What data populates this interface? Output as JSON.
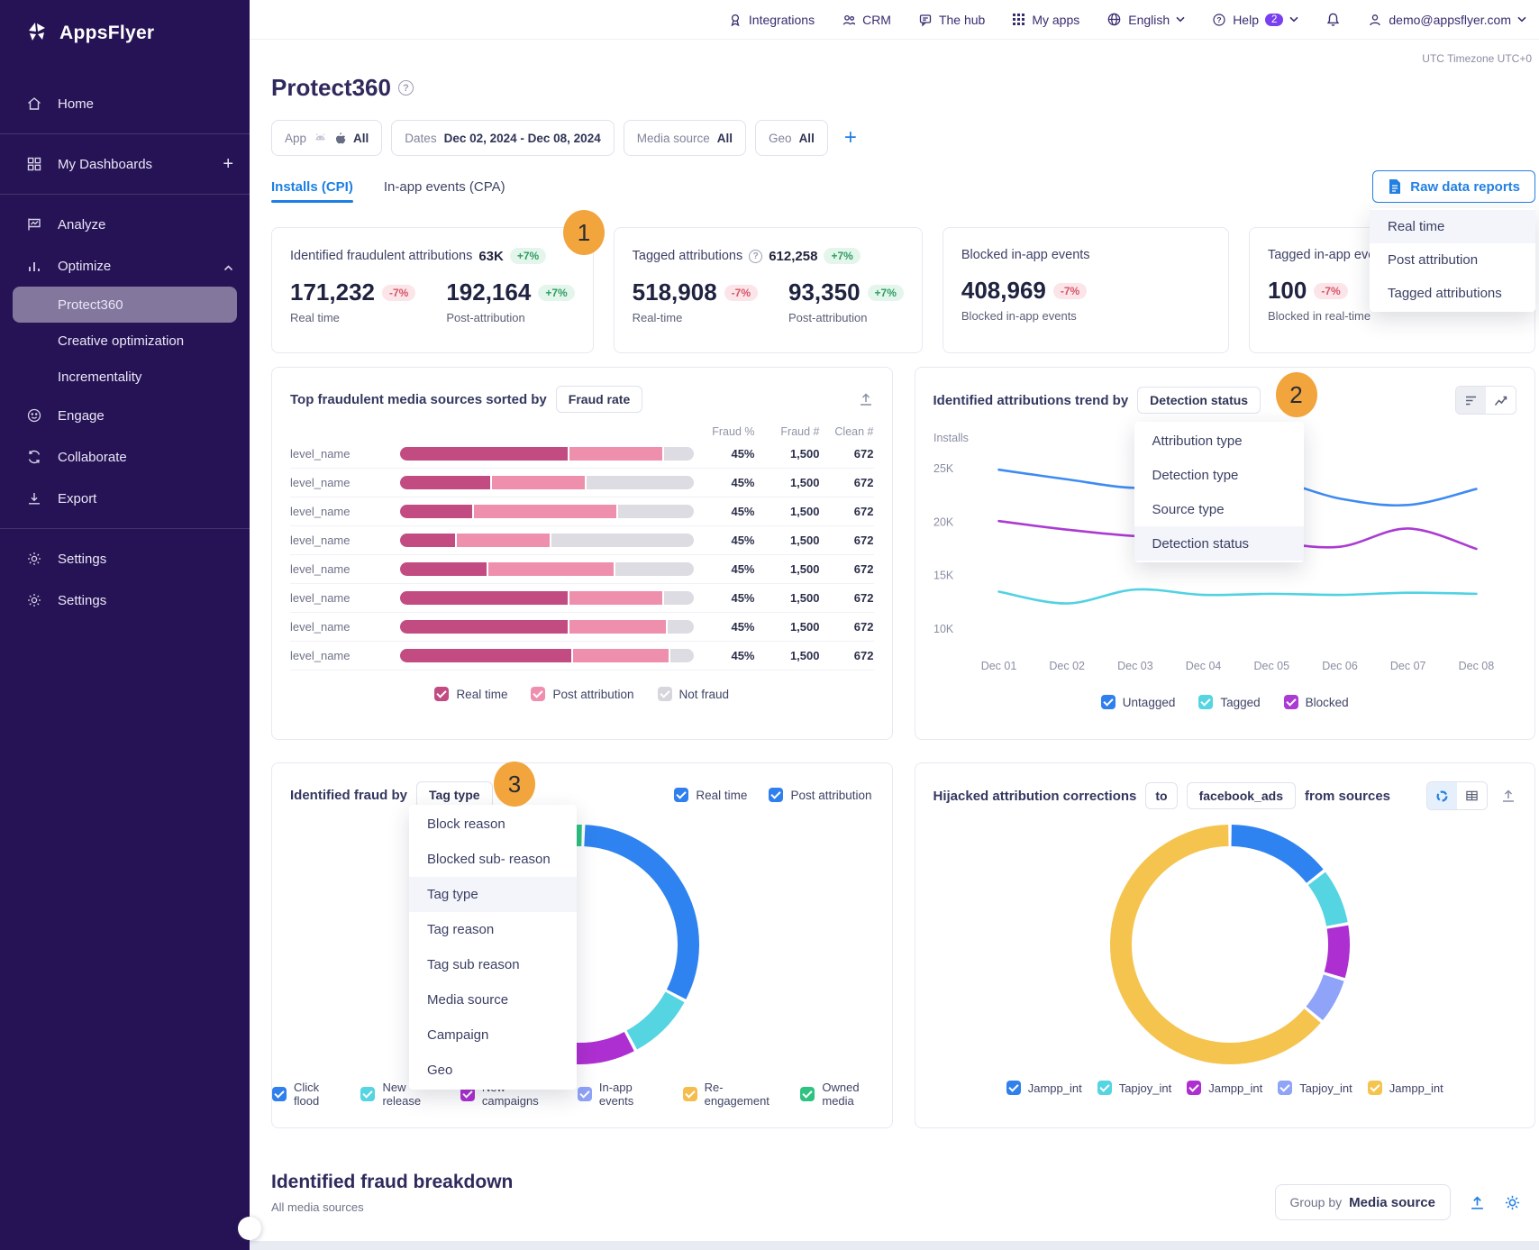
{
  "colors": {
    "sidebar_bg": "#261355",
    "accent_blue": "#2380e3",
    "checkbox_blue": "#2F80ED",
    "pink_dark": "#C24B82",
    "pink_light": "#EF8FAE",
    "neutral_gray": "#DCDCE2",
    "orange_badge": "#F2A43D",
    "badge_green": "#2f9e63",
    "badge_red": "#d85468"
  },
  "topnav": {
    "items": [
      {
        "label": "Integrations"
      },
      {
        "label": "CRM"
      },
      {
        "label": "The hub"
      },
      {
        "label": "My apps"
      },
      {
        "label": "English"
      },
      {
        "label": "Help"
      }
    ],
    "help_badge": "2",
    "email": "demo@appsflyer.com"
  },
  "sidebar": {
    "logo_text": "AppsFlyer",
    "items": [
      {
        "label": "Home",
        "icon": "home"
      },
      {
        "label": "My Dashboards",
        "icon": "dashboards",
        "trailing": "plus"
      },
      {
        "label": "Analyze",
        "icon": "analyze"
      },
      {
        "label": "Optimize",
        "icon": "optimize",
        "trailing": "chevron-up"
      },
      {
        "label": "Protect360",
        "sub": true,
        "selected": true
      },
      {
        "label": "Creative optimization",
        "sub": true
      },
      {
        "label": "Incrementality",
        "sub": true
      },
      {
        "label": "Engage",
        "icon": "engage"
      },
      {
        "label": "Collaborate",
        "icon": "collaborate"
      },
      {
        "label": "Export",
        "icon": "export"
      },
      {
        "label": "Settings",
        "icon": "settings"
      },
      {
        "label": "Settings",
        "icon": "settings"
      }
    ],
    "dividers_after": [
      0,
      1,
      9
    ]
  },
  "page": {
    "title": "Protect360",
    "timezone_note": "UTC Timezone UTC+0"
  },
  "filters": {
    "app_label": "App",
    "app_value": "All",
    "dates_label": "Dates",
    "dates_value": "Dec 02, 2024 - Dec 08, 2024",
    "media_label": "Media source",
    "media_value": "All",
    "geo_label": "Geo",
    "geo_value": "All",
    "add_label": "+"
  },
  "tabs": [
    {
      "label": "Installs (CPI)",
      "active": true
    },
    {
      "label": "In-app events (CPA)",
      "active": false
    }
  ],
  "raw_data": {
    "button_label": "Raw data reports",
    "menu": [
      "Real time",
      "Post attribution",
      "Tagged attributions"
    ],
    "active_index": 0
  },
  "step_badges": {
    "one": "1",
    "two": "2",
    "three": "3"
  },
  "kpis": {
    "cards": [
      {
        "title": "Identified fraudulent attributions",
        "title_value": "63K",
        "title_badge": "+7%",
        "title_badge_type": "up",
        "values": [
          {
            "value": "171,232",
            "badge": "-7%",
            "type": "down",
            "label": "Real time"
          },
          {
            "value": "192,164",
            "badge": "+7%",
            "type": "up",
            "label": "Post-attribution"
          }
        ]
      },
      {
        "title": "Tagged attributions",
        "help": true,
        "title_value": "612,258",
        "title_badge": "+7%",
        "title_badge_type": "up",
        "values": [
          {
            "value": "518,908",
            "badge": "-7%",
            "type": "down",
            "label": "Real-time"
          },
          {
            "value": "93,350",
            "badge": "+7%",
            "type": "up",
            "label": "Post-attribution"
          }
        ]
      },
      {
        "title": "Blocked in-app events",
        "values": [
          {
            "value": "408,969",
            "badge": "-7%",
            "type": "down",
            "label": "Blocked in-app events"
          }
        ]
      },
      {
        "title": "Tagged in-app ever",
        "values": [
          {
            "value": "100",
            "badge": "-7%",
            "type": "down",
            "label": "Blocked in real-time"
          }
        ]
      }
    ]
  },
  "fraud_sources": {
    "title": "Top fraudulent media sources sorted by",
    "sort_button": "Fraud rate",
    "columns": [
      "Fraud %",
      "Fraud #",
      "Clean #"
    ],
    "rows": [
      {
        "label": "level_name",
        "fraud_pct": "45%",
        "fraud_num": "1,500",
        "clean_num": "672",
        "segments": [
          58,
          32,
          10
        ]
      },
      {
        "label": "level_name",
        "fraud_pct": "45%",
        "fraud_num": "1,500",
        "clean_num": "672",
        "segments": [
          31,
          32,
          37
        ]
      },
      {
        "label": "level_name",
        "fraud_pct": "45%",
        "fraud_num": "1,500",
        "clean_num": "672",
        "segments": [
          25,
          49,
          26
        ]
      },
      {
        "label": "level_name",
        "fraud_pct": "45%",
        "fraud_num": "1,500",
        "clean_num": "672",
        "segments": [
          19,
          32,
          49
        ]
      },
      {
        "label": "level_name",
        "fraud_pct": "45%",
        "fraud_num": "1,500",
        "clean_num": "672",
        "segments": [
          30,
          43,
          27
        ]
      },
      {
        "label": "level_name",
        "fraud_pct": "45%",
        "fraud_num": "1,500",
        "clean_num": "672",
        "segments": [
          58,
          32,
          10
        ]
      },
      {
        "label": "level_name",
        "fraud_pct": "45%",
        "fraud_num": "1,500",
        "clean_num": "672",
        "segments": [
          58,
          33,
          9
        ]
      },
      {
        "label": "level_name",
        "fraud_pct": "45%",
        "fraud_num": "1,500",
        "clean_num": "672",
        "segments": [
          59,
          33,
          8
        ]
      }
    ],
    "legend": [
      {
        "label": "Real time",
        "color": "#C24B82"
      },
      {
        "label": "Post attribution",
        "color": "#EF8FAE"
      },
      {
        "label": "Not fraud",
        "color": "#D6D7DD"
      }
    ]
  },
  "trend": {
    "title": "Identified attributions trend by",
    "selector": "Detection status",
    "menu": [
      "Attribution type",
      "Detection type",
      "Source type",
      "Detection status"
    ],
    "active_index": 3,
    "chart_data": {
      "type": "line",
      "ylabel": "Installs",
      "yticks": [
        "25K",
        "20K",
        "15K",
        "10K"
      ],
      "ylim": [
        10,
        26
      ],
      "x": [
        "Dec 01",
        "Dec 02",
        "Dec 03",
        "Dec 04",
        "Dec 05",
        "Dec 06",
        "Dec 07",
        "Dec 08"
      ],
      "series": [
        {
          "name": "Untagged",
          "color": "#3E8BF2",
          "values": [
            24.9,
            24.0,
            23.2,
            23.6,
            23.9,
            22.2,
            21.6,
            23.1
          ]
        },
        {
          "name": "Blocked",
          "color": "#AB3BD2",
          "values": [
            20.1,
            19.3,
            18.7,
            18.6,
            18.1,
            17.7,
            19.4,
            17.5
          ]
        },
        {
          "name": "Tagged",
          "color": "#50D2E2",
          "values": [
            13.5,
            12.4,
            13.7,
            13.2,
            13.3,
            13.2,
            13.4,
            13.3
          ]
        }
      ]
    },
    "legend": [
      {
        "label": "Untagged",
        "color": "#2F80ED"
      },
      {
        "label": "Tagged",
        "color": "#55D4E2"
      },
      {
        "label": "Blocked",
        "color": "#AB3BD2"
      }
    ]
  },
  "fraud_by": {
    "title": "Identified fraud by",
    "selector": "Tag type",
    "menu": [
      "Block reason",
      "Blocked sub- reason",
      "Tag type",
      "Tag reason",
      "Tag sub reason",
      "Media source",
      "Campaign",
      "Geo"
    ],
    "active_index": 2,
    "checkboxes": [
      {
        "label": "Real time",
        "checked": true
      },
      {
        "label": "Post attribution",
        "checked": true
      }
    ],
    "chart_data": {
      "type": "pie",
      "start_deg": -10,
      "segments": [
        {
          "label": "Owned media",
          "color": "#2EC381",
          "deg": 12
        },
        {
          "label": "Click flood",
          "color": "#2F83F0",
          "deg": 116
        },
        {
          "label": "New release",
          "color": "#55D4E2",
          "deg": 34
        },
        {
          "label": "New campaigns",
          "color": "#AE2FD1",
          "deg": 66
        },
        {
          "label": "In-app events",
          "color": "#8FA3F8",
          "deg": 36
        },
        {
          "label": "Re-engagement",
          "color": "#F5BC4E",
          "deg": 96
        }
      ]
    },
    "legend": [
      {
        "label": "Click flood",
        "color": "#2F80ED"
      },
      {
        "label": "New release",
        "color": "#55D4E2"
      },
      {
        "label": "New campaigns",
        "color": "#AE2FD1"
      },
      {
        "label": "In-app events",
        "color": "#8FA3F8"
      },
      {
        "label": "Re-engagement",
        "color": "#F5BC4E"
      },
      {
        "label": "Owned media",
        "color": "#2EC381"
      }
    ]
  },
  "hijacked": {
    "title": "Hijacked attribution corrections",
    "to_label": "to",
    "target": "facebook_ads",
    "from_label": "from sources",
    "chart_data": {
      "type": "pie",
      "start_deg": 0,
      "segments": [
        {
          "label": "Jampp_int",
          "color": "#2F83F0",
          "deg": 52
        },
        {
          "label": "Tapjoy_int",
          "color": "#55D4E2",
          "deg": 28
        },
        {
          "label": "Jampp_int",
          "color": "#AE2FD1",
          "deg": 27
        },
        {
          "label": "Tapjoy_int",
          "color": "#8FA3F8",
          "deg": 23
        },
        {
          "label": "Jampp_int",
          "color": "#F5C44F",
          "deg": 230
        }
      ]
    },
    "legend": [
      {
        "label": "Jampp_int",
        "color": "#2F80ED"
      },
      {
        "label": "Tapjoy_int",
        "color": "#55D4E2"
      },
      {
        "label": "Jampp_int",
        "color": "#AE2FD1"
      },
      {
        "label": "Tapjoy_int",
        "color": "#8FA3F8"
      },
      {
        "label": "Jampp_int",
        "color": "#F5C44F"
      }
    ]
  },
  "breakdown": {
    "title": "Identified fraud breakdown",
    "subtitle": "All media sources",
    "group_by_label": "Group by",
    "group_by_value": "Media source"
  }
}
